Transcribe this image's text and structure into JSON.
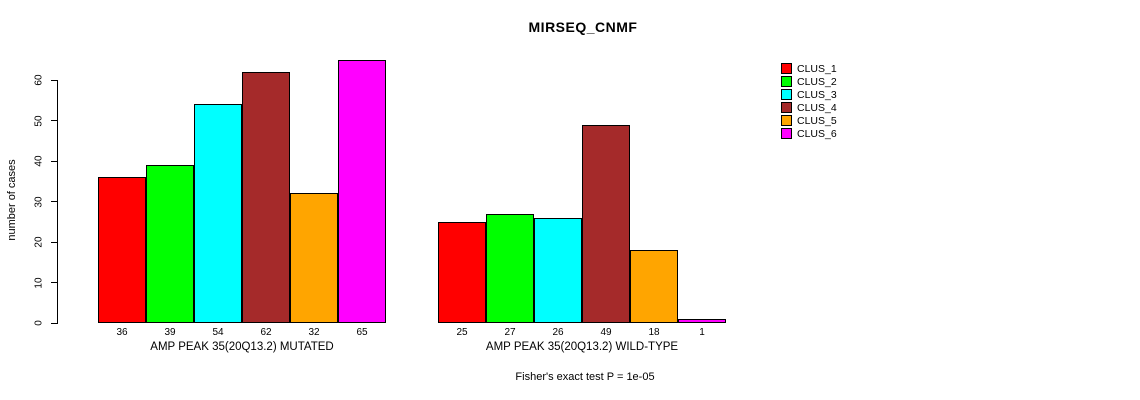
{
  "chart_data": {
    "type": "bar",
    "title": "MIRSEQ_CNMF",
    "ylabel": "number of cases",
    "xlabel": "",
    "ylim": [
      0,
      60
    ],
    "yticks": [
      0,
      10,
      20,
      30,
      40,
      50,
      60
    ],
    "grid": false,
    "legend_position": "right",
    "legend": [
      "CLUS_1",
      "CLUS_2",
      "CLUS_3",
      "CLUS_4",
      "CLUS_5",
      "CLUS_6"
    ],
    "cluster_colors": [
      "#FF0000",
      "#00FF00",
      "#00FFFF",
      "#A52A2A",
      "#FFA500",
      "#FF00FF"
    ],
    "groups": [
      {
        "label": "AMP PEAK 35(20Q13.2) MUTATED",
        "values": [
          36,
          39,
          54,
          62,
          32,
          65
        ]
      },
      {
        "label": "AMP PEAK 35(20Q13.2) WILD-TYPE",
        "values": [
          25,
          27,
          26,
          49,
          18,
          1
        ]
      }
    ],
    "footnote": "Fisher's exact test P = 1e-05"
  }
}
